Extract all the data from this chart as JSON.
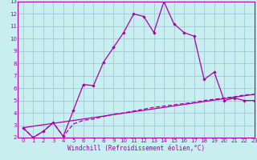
{
  "xlabel": "Windchill (Refroidissement éolien,°C)",
  "bg_color": "#c8eef0",
  "grid_color": "#a0c8d8",
  "line_color": "#aa00aa",
  "line1_x": [
    0,
    1,
    2,
    3,
    4,
    5,
    6,
    7,
    8,
    9,
    10,
    11,
    12,
    13,
    14,
    15,
    16,
    17,
    18,
    19,
    20,
    21,
    22,
    23
  ],
  "line1_y": [
    2.8,
    2.0,
    2.5,
    3.2,
    2.1,
    4.2,
    6.3,
    6.2,
    8.1,
    9.3,
    10.5,
    12.0,
    11.8,
    10.5,
    13.0,
    11.2,
    10.5,
    10.2,
    6.7,
    7.3,
    5.0,
    5.2,
    5.0,
    5.0
  ],
  "line2_x": [
    0,
    1,
    2,
    3,
    4,
    5,
    6,
    7,
    8,
    9,
    10,
    11,
    12,
    13,
    14,
    15,
    16,
    17,
    18,
    19,
    20,
    21,
    22,
    23
  ],
  "line2_y": [
    2.8,
    2.0,
    2.5,
    3.2,
    2.1,
    3.1,
    3.4,
    3.5,
    3.7,
    3.9,
    4.0,
    4.15,
    4.3,
    4.45,
    4.55,
    4.65,
    4.75,
    4.85,
    5.0,
    5.1,
    5.2,
    5.3,
    5.45,
    5.5
  ],
  "line3_x": [
    0,
    23
  ],
  "line3_y": [
    2.8,
    5.5
  ],
  "xlim": [
    -0.5,
    23
  ],
  "ylim": [
    2,
    13
  ],
  "yticks": [
    2,
    3,
    4,
    5,
    6,
    7,
    8,
    9,
    10,
    11,
    12,
    13
  ],
  "xticks": [
    0,
    1,
    2,
    3,
    4,
    5,
    6,
    7,
    8,
    9,
    10,
    11,
    12,
    13,
    14,
    15,
    16,
    17,
    18,
    19,
    20,
    21,
    22,
    23
  ]
}
